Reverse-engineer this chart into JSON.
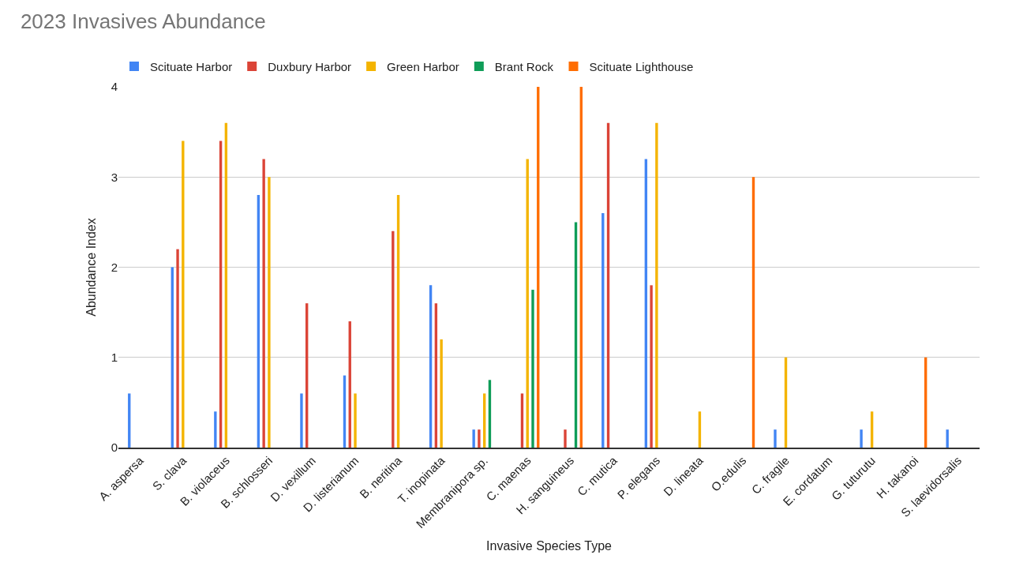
{
  "chart_data": {
    "type": "bar",
    "title": "2023 Invasives Abundance",
    "xlabel": "Invasive Species Type",
    "ylabel": "Abundance Index",
    "categories": [
      "A. aspersa",
      "S. clava",
      "B. violaceus",
      "B. schlosseri",
      "D. vexillum",
      "D. listerianum",
      "B. neritina",
      "T. inopinata",
      "Membranipora sp.",
      "C. maenas",
      "H. sanguineus",
      "C. mutica",
      "P. elegans",
      "D. lineata",
      "O.edulis",
      "C. fragile",
      "E. cordatum",
      "G. tuturutu",
      "H. takanoi",
      "S. laevidorsalis"
    ],
    "series": [
      {
        "name": "Scituate Harbor",
        "color": "#4285f4",
        "values": [
          0.6,
          2.0,
          0.4,
          2.8,
          0.6,
          0.8,
          null,
          1.8,
          0.2,
          null,
          null,
          2.6,
          3.2,
          null,
          null,
          0.2,
          null,
          0.2,
          null,
          0.2
        ]
      },
      {
        "name": "Duxbury Harbor",
        "color": "#db4437",
        "values": [
          null,
          2.2,
          3.4,
          3.2,
          1.6,
          1.4,
          2.4,
          1.6,
          0.2,
          0.6,
          0.2,
          3.6,
          1.8,
          null,
          null,
          null,
          null,
          null,
          null,
          null
        ]
      },
      {
        "name": "Green Harbor",
        "color": "#f4b400",
        "values": [
          null,
          3.4,
          3.6,
          3.0,
          null,
          0.6,
          2.8,
          1.2,
          0.6,
          3.2,
          null,
          null,
          3.6,
          0.4,
          null,
          1.0,
          null,
          0.4,
          null,
          null
        ]
      },
      {
        "name": "Brant Rock",
        "color": "#0f9d58",
        "values": [
          null,
          null,
          null,
          null,
          null,
          null,
          null,
          null,
          0.75,
          1.75,
          2.5,
          null,
          null,
          null,
          null,
          null,
          null,
          null,
          null,
          null
        ]
      },
      {
        "name": "Scituate Lighthouse",
        "color": "#ff6d01",
        "values": [
          null,
          null,
          null,
          null,
          null,
          null,
          null,
          null,
          null,
          4,
          4,
          null,
          null,
          null,
          3,
          null,
          null,
          null,
          1,
          null
        ]
      }
    ],
    "ylim": [
      0,
      4
    ],
    "yticks": [
      0,
      1,
      2,
      3,
      4
    ],
    "grid": "y",
    "legend": "top left"
  }
}
